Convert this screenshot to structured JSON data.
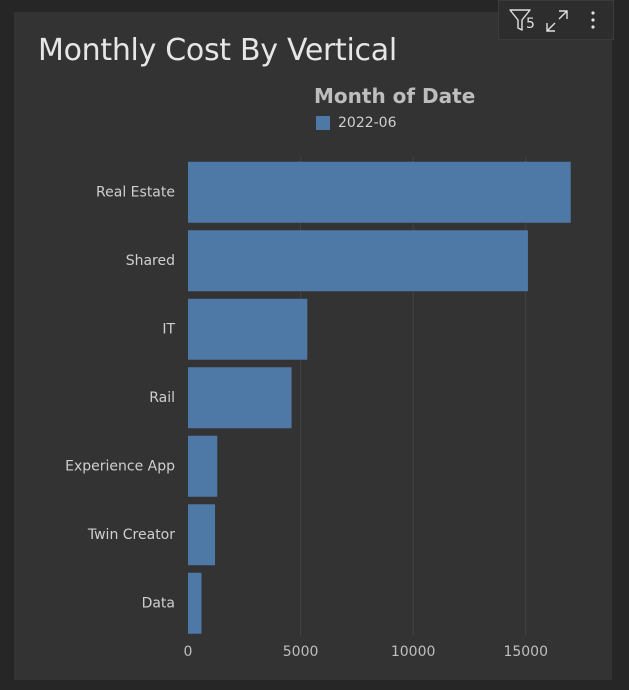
{
  "chart_data": {
    "type": "bar",
    "orientation": "horizontal",
    "title": "Monthly Cost By Vertical",
    "legend_title": "Month of Date",
    "legend_placement": "top",
    "categories": [
      "Real Estate",
      "Shared",
      "IT",
      "Rail",
      "Experience App",
      "Twin Creator",
      "Data"
    ],
    "series": [
      {
        "name": "2022-06",
        "color": "#4e79a7",
        "values": [
          17000,
          15100,
          5300,
          4600,
          1300,
          1200,
          600
        ]
      }
    ],
    "x_ticks": [
      "0",
      "5000",
      "10000",
      "15000"
    ],
    "x_tick_values": [
      0,
      5000,
      10000,
      15000
    ],
    "xlim": [
      0,
      17500
    ],
    "grid": true,
    "xlabel": "",
    "ylabel": ""
  },
  "toolbar": {
    "filter_count": "5",
    "icons": [
      "filter-icon",
      "expand-icon",
      "more-options-icon"
    ]
  },
  "colors": {
    "background": "#333333",
    "grid": "#444444",
    "text": "#cfcfcf"
  }
}
